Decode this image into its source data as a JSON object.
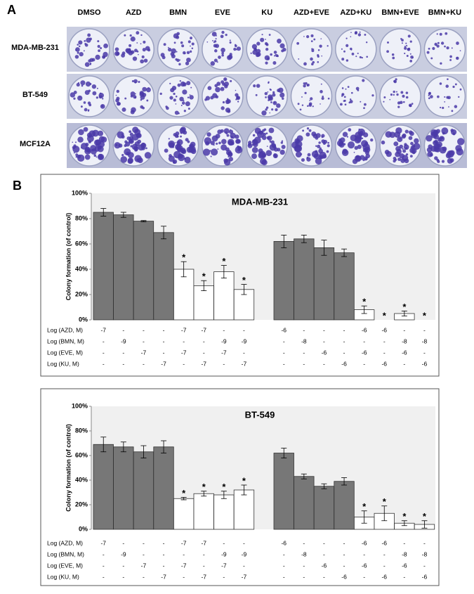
{
  "panel_a": {
    "label": "A",
    "columns": [
      "DMSO",
      "AZD",
      "BMN",
      "EVE",
      "KU",
      "AZD+EVE",
      "AZD+KU",
      "BMN+EVE",
      "BMN+KU"
    ],
    "rows": [
      "MDA-MB-231",
      "BT-549",
      "MCF12A"
    ]
  },
  "panel_b_label": "B",
  "chart_data": [
    {
      "type": "bar",
      "title": "MDA-MB-231",
      "ylabel": "Colony formation (of control)",
      "ylim": [
        0,
        100
      ],
      "yticks": [
        {
          "value": 0,
          "label": "0%"
        },
        {
          "value": 20,
          "label": "20%"
        },
        {
          "value": 40,
          "label": "40%"
        },
        {
          "value": 60,
          "label": "60%"
        },
        {
          "value": 80,
          "label": "80%"
        },
        {
          "value": 100,
          "label": "100%"
        }
      ],
      "values": [
        85,
        83,
        78,
        69,
        40,
        27,
        38,
        24,
        62,
        64,
        57,
        53,
        8,
        0,
        5,
        0
      ],
      "errors": [
        3,
        2,
        0.5,
        5,
        6,
        4,
        5,
        4,
        5,
        3,
        6,
        3,
        3,
        null,
        2,
        null
      ],
      "colors": [
        "#777777",
        "#777777",
        "#777777",
        "#777777",
        "#ffffff",
        "#ffffff",
        "#ffffff",
        "#ffffff",
        "#777777",
        "#777777",
        "#777777",
        "#777777",
        "#ffffff",
        "#ffffff",
        "#ffffff",
        "#ffffff"
      ],
      "annotations": [
        null,
        null,
        null,
        null,
        "*",
        "*",
        "*",
        "*",
        null,
        null,
        null,
        null,
        "*",
        "*",
        "*",
        "*"
      ],
      "treatment_rows": [
        {
          "label": "Log (AZD, M)",
          "values": [
            "-7",
            "-",
            "-",
            "-",
            "-7",
            "-7",
            "-",
            "-",
            "-6",
            "-",
            "-",
            "-",
            "-6",
            "-6",
            "-",
            "-"
          ]
        },
        {
          "label": "Log (BMN, M)",
          "values": [
            "-",
            "-9",
            "-",
            "-",
            "-",
            "-",
            "-9",
            "-9",
            "-",
            "-8",
            "-",
            "-",
            "-",
            "-",
            "-8",
            "-8"
          ]
        },
        {
          "label": "Log (EVE, M)",
          "values": [
            "-",
            "-",
            "-7",
            "-",
            "-7",
            "-",
            "-7",
            "-",
            "-",
            "-",
            "-6",
            "-",
            "-6",
            "-",
            "-6",
            "-"
          ]
        },
        {
          "label": "Log (KU, M)",
          "values": [
            "-",
            "-",
            "-",
            "-7",
            "-",
            "-7",
            "-",
            "-7",
            "-",
            "-",
            "-",
            "-6",
            "-",
            "-6",
            "-",
            "-6"
          ]
        }
      ]
    },
    {
      "type": "bar",
      "title": "BT-549",
      "ylabel": "Colony formation (of control)",
      "ylim": [
        0,
        100
      ],
      "yticks": [
        {
          "value": 0,
          "label": "0%"
        },
        {
          "value": 20,
          "label": "20%"
        },
        {
          "value": 40,
          "label": "40%"
        },
        {
          "value": 60,
          "label": "60%"
        },
        {
          "value": 80,
          "label": "80%"
        },
        {
          "value": 100,
          "label": "100%"
        }
      ],
      "values": [
        69,
        67,
        63,
        67,
        25,
        29,
        28,
        32,
        62,
        43,
        35,
        39,
        10,
        13,
        5,
        4
      ],
      "errors": [
        6,
        4,
        5,
        5,
        1,
        2,
        3,
        4,
        4,
        2,
        2,
        3,
        5,
        6,
        2,
        3
      ],
      "colors": [
        "#777777",
        "#777777",
        "#777777",
        "#777777",
        "#ffffff",
        "#ffffff",
        "#ffffff",
        "#ffffff",
        "#777777",
        "#777777",
        "#777777",
        "#777777",
        "#ffffff",
        "#ffffff",
        "#ffffff",
        "#ffffff"
      ],
      "annotations": [
        null,
        null,
        null,
        null,
        "*",
        "*",
        "*",
        "*",
        null,
        null,
        null,
        null,
        "*",
        "*",
        "*",
        "*"
      ],
      "treatment_rows": [
        {
          "label": "Log (AZD, M)",
          "values": [
            "-7",
            "-",
            "-",
            "-",
            "-7",
            "-7",
            "-",
            "-",
            "-6",
            "-",
            "-",
            "-",
            "-6",
            "-6",
            "-",
            "-"
          ]
        },
        {
          "label": "Log (BMN, M)",
          "values": [
            "-",
            "-9",
            "-",
            "-",
            "-",
            "-",
            "-9",
            "-9",
            "-",
            "-8",
            "-",
            "-",
            "-",
            "-",
            "-8",
            "-8"
          ]
        },
        {
          "label": "Log (EVE, M)",
          "values": [
            "-",
            "-",
            "-7",
            "-",
            "-7",
            "-",
            "-7",
            "-",
            "-",
            "-",
            "-6",
            "-",
            "-6",
            "-",
            "-6",
            "-"
          ]
        },
        {
          "label": "Log (KU, M)",
          "values": [
            "-",
            "-",
            "-",
            "-7",
            "-",
            "-7",
            "-",
            "-7",
            "-",
            "-",
            "-",
            "-6",
            "-",
            "-6",
            "-",
            "-6"
          ]
        }
      ]
    }
  ]
}
